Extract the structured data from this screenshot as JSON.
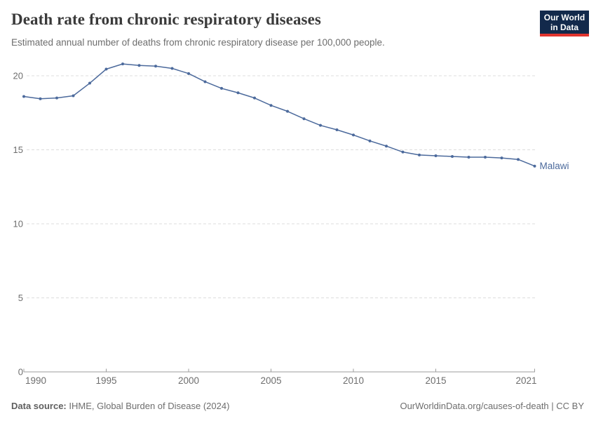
{
  "header": {
    "title": "Death rate from chronic respiratory diseases",
    "subtitle": "Estimated annual number of deaths from chronic respiratory disease per 100,000 people.",
    "logo": {
      "line1": "Our World",
      "line2": "in Data",
      "bg_color": "#12294b",
      "accent_color": "#e0342e"
    }
  },
  "chart_data": {
    "type": "line",
    "x": [
      1990,
      1991,
      1992,
      1993,
      1994,
      1995,
      1996,
      1997,
      1998,
      1999,
      2000,
      2001,
      2002,
      2003,
      2004,
      2005,
      2006,
      2007,
      2008,
      2009,
      2010,
      2011,
      2012,
      2013,
      2014,
      2015,
      2016,
      2017,
      2018,
      2019,
      2020,
      2021
    ],
    "series": [
      {
        "name": "Malawi",
        "color": "#4c6a9c",
        "values": [
          18.6,
          18.45,
          18.5,
          18.65,
          19.5,
          20.45,
          20.8,
          20.7,
          20.65,
          20.5,
          20.15,
          19.6,
          19.15,
          18.85,
          18.5,
          18.0,
          17.6,
          17.1,
          16.65,
          16.35,
          16.0,
          15.6,
          15.25,
          14.85,
          14.65,
          14.6,
          14.55,
          14.5,
          14.5,
          14.45,
          14.35,
          13.9
        ]
      }
    ],
    "title": "Death rate from chronic respiratory diseases",
    "xlabel": "",
    "ylabel": "",
    "xlim": [
      1990,
      2021
    ],
    "ylim": [
      0,
      21
    ],
    "yticks": [
      0,
      5,
      10,
      15,
      20
    ],
    "xticks": [
      1990,
      1995,
      2000,
      2005,
      2010,
      2015,
      2021
    ],
    "grid": "horizontal-dashed",
    "legend_position": "end-of-line-label",
    "end_label": "Malawi",
    "colors": {
      "gridline": "#dcdcdc",
      "axis": "#9e9e9e",
      "tick_label": "#6e6e6e"
    }
  },
  "footer": {
    "source_label": "Data source:",
    "source_text": " IHME, Global Burden of Disease (2024)",
    "right_text": "OurWorldinData.org/causes-of-death | CC BY"
  }
}
